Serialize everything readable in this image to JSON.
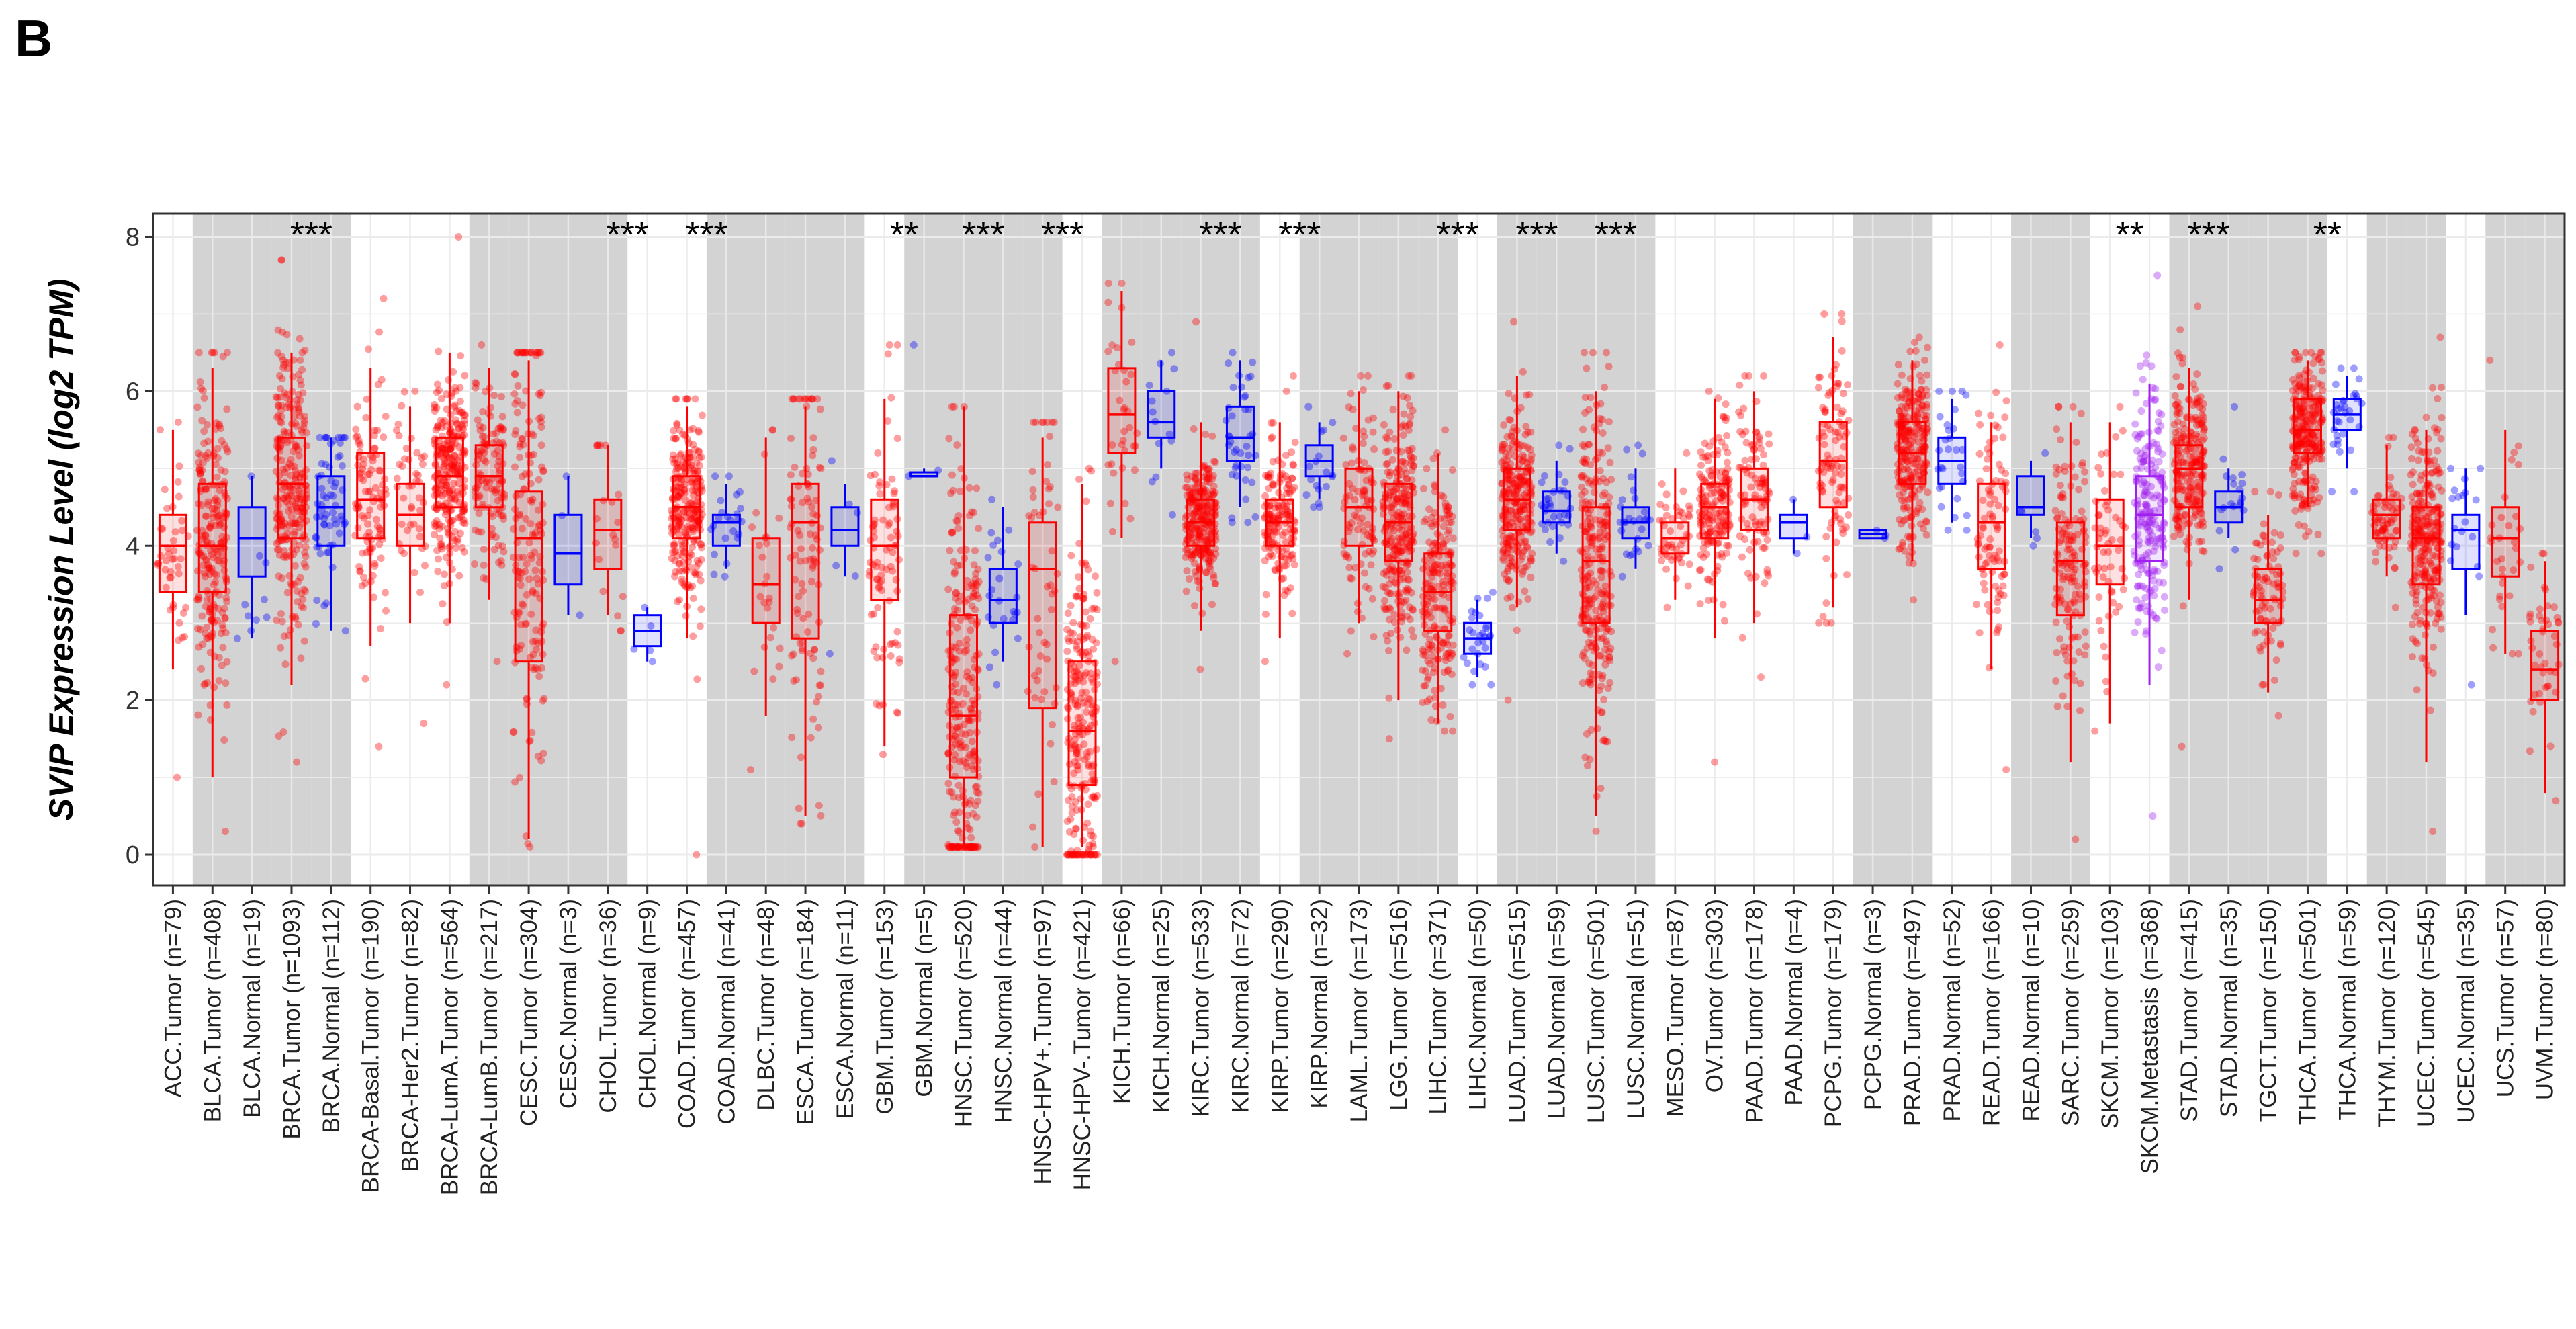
{
  "panel_label": "B",
  "colors": {
    "tumor": "#ff0000",
    "normal": "#0000ff",
    "metastasis": "#a020f0",
    "shade": "#d3d3d3",
    "grid": "#ebebeb"
  },
  "chart_data": {
    "type": "box",
    "title": "",
    "xlabel": "",
    "ylabel": "SVIP Expression Level (log2 TPM)",
    "ylim": [
      -0.4,
      8.3
    ],
    "yticks": [
      0,
      2,
      4,
      6,
      8
    ],
    "shaded_indices": [
      1,
      2,
      3,
      4,
      8,
      9,
      10,
      11,
      14,
      15,
      16,
      17,
      19,
      20,
      21,
      22,
      24,
      25,
      26,
      27,
      29,
      30,
      31,
      32,
      34,
      35,
      36,
      37,
      43,
      44,
      47,
      48,
      51,
      52,
      53,
      54,
      56,
      57,
      59,
      60
    ],
    "categories": [
      {
        "label": "ACC.Tumor (n=79)",
        "group": "tumor",
        "min": 2.4,
        "q1": 3.4,
        "median": 4.0,
        "q3": 4.4,
        "max": 5.5,
        "lo": 1.0,
        "hi": 5.6
      },
      {
        "label": "BLCA.Tumor (n=408)",
        "group": "tumor",
        "min": 1.0,
        "q1": 3.4,
        "median": 4.0,
        "q3": 4.8,
        "max": 6.3,
        "lo": 0.3,
        "hi": 6.5
      },
      {
        "label": "BLCA.Normal (n=19)",
        "group": "normal",
        "min": 2.8,
        "q1": 3.6,
        "median": 4.1,
        "q3": 4.5,
        "max": 4.9,
        "lo": 2.8,
        "hi": 4.9
      },
      {
        "label": "BRCA.Tumor (n=1093)",
        "group": "tumor",
        "min": 2.2,
        "q1": 4.1,
        "median": 4.8,
        "q3": 5.4,
        "max": 6.5,
        "lo": 1.2,
        "hi": 7.7,
        "sig": "***"
      },
      {
        "label": "BRCA.Normal (n=112)",
        "group": "normal",
        "min": 2.9,
        "q1": 4.0,
        "median": 4.5,
        "q3": 4.9,
        "max": 5.4,
        "lo": 2.9,
        "hi": 5.4
      },
      {
        "label": "BRCA-Basal.Tumor (n=190)",
        "group": "tumor",
        "min": 2.7,
        "q1": 4.1,
        "median": 4.6,
        "q3": 5.2,
        "max": 6.3,
        "lo": 1.4,
        "hi": 7.2
      },
      {
        "label": "BRCA-Her2.Tumor (n=82)",
        "group": "tumor",
        "min": 3.0,
        "q1": 4.0,
        "median": 4.4,
        "q3": 4.8,
        "max": 5.8,
        "lo": 1.7,
        "hi": 6.0
      },
      {
        "label": "BRCA-LumA.Tumor (n=564)",
        "group": "tumor",
        "min": 3.0,
        "q1": 4.5,
        "median": 4.9,
        "q3": 5.4,
        "max": 6.5,
        "lo": 2.2,
        "hi": 8.0
      },
      {
        "label": "BRCA-LumB.Tumor (n=217)",
        "group": "tumor",
        "min": 3.3,
        "q1": 4.5,
        "median": 4.9,
        "q3": 5.3,
        "max": 6.3,
        "lo": 2.5,
        "hi": 6.6
      },
      {
        "label": "CESC.Tumor (n=304)",
        "group": "tumor",
        "min": 0.2,
        "q1": 2.5,
        "median": 4.1,
        "q3": 4.7,
        "max": 6.4,
        "lo": 0.1,
        "hi": 6.5
      },
      {
        "label": "CESC.Normal (n=3)",
        "group": "normal",
        "min": 3.1,
        "q1": 3.5,
        "median": 3.9,
        "q3": 4.4,
        "max": 4.9,
        "lo": 3.1,
        "hi": 4.9
      },
      {
        "label": "CHOL.Tumor (n=36)",
        "group": "tumor",
        "min": 3.1,
        "q1": 3.7,
        "median": 4.2,
        "q3": 4.6,
        "max": 5.3,
        "lo": 2.9,
        "hi": 5.3,
        "sig": "***"
      },
      {
        "label": "CHOL.Normal (n=9)",
        "group": "normal",
        "min": 2.5,
        "q1": 2.7,
        "median": 2.9,
        "q3": 3.1,
        "max": 3.2,
        "lo": 2.5,
        "hi": 3.2
      },
      {
        "label": "COAD.Tumor (n=457)",
        "group": "tumor",
        "min": 2.8,
        "q1": 4.1,
        "median": 4.5,
        "q3": 4.9,
        "max": 5.8,
        "lo": 0.0,
        "hi": 5.9,
        "sig": "***"
      },
      {
        "label": "COAD.Normal (n=41)",
        "group": "normal",
        "min": 3.7,
        "q1": 4.0,
        "median": 4.3,
        "q3": 4.4,
        "max": 4.8,
        "lo": 3.6,
        "hi": 4.9
      },
      {
        "label": "DLBC.Tumor (n=48)",
        "group": "tumor",
        "min": 1.8,
        "q1": 3.0,
        "median": 3.5,
        "q3": 4.1,
        "max": 5.4,
        "lo": 1.1,
        "hi": 5.5
      },
      {
        "label": "ESCA.Tumor (n=184)",
        "group": "tumor",
        "min": 0.5,
        "q1": 2.8,
        "median": 4.3,
        "q3": 4.8,
        "max": 5.8,
        "lo": 0.4,
        "hi": 5.9
      },
      {
        "label": "ESCA.Normal (n=11)",
        "group": "normal",
        "min": 3.6,
        "q1": 4.0,
        "median": 4.2,
        "q3": 4.5,
        "max": 4.8,
        "lo": 2.6,
        "hi": 5.1
      },
      {
        "label": "GBM.Tumor (n=153)",
        "group": "tumor",
        "min": 1.4,
        "q1": 3.3,
        "median": 4.0,
        "q3": 4.6,
        "max": 5.9,
        "lo": 1.3,
        "hi": 6.6,
        "sig": "**"
      },
      {
        "label": "GBM.Normal (n=5)",
        "group": "normal",
        "min": 4.9,
        "q1": 4.9,
        "median": 4.9,
        "q3": 4.95,
        "max": 5.0,
        "lo": 4.9,
        "hi": 6.6
      },
      {
        "label": "HNSC.Tumor (n=520)",
        "group": "tumor",
        "min": 0.1,
        "q1": 1.0,
        "median": 1.8,
        "q3": 3.1,
        "max": 5.8,
        "lo": 0.1,
        "hi": 5.8,
        "sig": "***"
      },
      {
        "label": "HNSC.Normal (n=44)",
        "group": "normal",
        "min": 2.5,
        "q1": 3.0,
        "median": 3.3,
        "q3": 3.7,
        "max": 4.5,
        "lo": 2.2,
        "hi": 4.6
      },
      {
        "label": "HNSC-HPV+.Tumor (n=97)",
        "group": "tumor",
        "min": 0.1,
        "q1": 1.9,
        "median": 3.7,
        "q3": 4.3,
        "max": 5.4,
        "lo": 0.1,
        "hi": 5.6,
        "sig": "***"
      },
      {
        "label": "HNSC-HPV-.Tumor (n=421)",
        "group": "tumor",
        "min": 0.1,
        "q1": 0.9,
        "median": 1.6,
        "q3": 2.5,
        "max": 4.8,
        "lo": 0.0,
        "hi": 5.0
      },
      {
        "label": "KICH.Tumor (n=66)",
        "group": "tumor",
        "min": 4.1,
        "q1": 5.2,
        "median": 5.7,
        "q3": 6.3,
        "max": 7.3,
        "lo": 2.5,
        "hi": 7.4
      },
      {
        "label": "KICH.Normal (n=25)",
        "group": "normal",
        "min": 5.0,
        "q1": 5.4,
        "median": 5.6,
        "q3": 6.0,
        "max": 6.4,
        "lo": 4.4,
        "hi": 6.5
      },
      {
        "label": "KIRC.Tumor (n=533)",
        "group": "tumor",
        "min": 2.9,
        "q1": 4.0,
        "median": 4.3,
        "q3": 4.6,
        "max": 5.6,
        "lo": 2.4,
        "hi": 6.9,
        "sig": "***"
      },
      {
        "label": "KIRC.Normal (n=72)",
        "group": "normal",
        "min": 4.5,
        "q1": 5.1,
        "median": 5.4,
        "q3": 5.8,
        "max": 6.4,
        "lo": 4.3,
        "hi": 6.5
      },
      {
        "label": "KIRP.Tumor (n=290)",
        "group": "tumor",
        "min": 2.8,
        "q1": 4.0,
        "median": 4.3,
        "q3": 4.6,
        "max": 5.6,
        "lo": 2.5,
        "hi": 6.2,
        "sig": "***"
      },
      {
        "label": "KIRP.Normal (n=32)",
        "group": "normal",
        "min": 4.6,
        "q1": 4.9,
        "median": 5.1,
        "q3": 5.3,
        "max": 5.6,
        "lo": 4.5,
        "hi": 5.8
      },
      {
        "label": "LAML.Tumor (n=173)",
        "group": "tumor",
        "min": 3.0,
        "q1": 4.0,
        "median": 4.5,
        "q3": 5.0,
        "max": 6.0,
        "lo": 2.6,
        "hi": 6.2
      },
      {
        "label": "LGG.Tumor (n=516)",
        "group": "tumor",
        "min": 2.0,
        "q1": 3.8,
        "median": 4.3,
        "q3": 4.8,
        "max": 6.0,
        "lo": 1.5,
        "hi": 6.2
      },
      {
        "label": "LIHC.Tumor (n=371)",
        "group": "tumor",
        "min": 1.7,
        "q1": 2.9,
        "median": 3.4,
        "q3": 3.9,
        "max": 5.2,
        "lo": 1.6,
        "hi": 5.5,
        "sig": "***"
      },
      {
        "label": "LIHC.Normal (n=50)",
        "group": "normal",
        "min": 2.3,
        "q1": 2.6,
        "median": 2.8,
        "q3": 3.0,
        "max": 3.3,
        "lo": 2.2,
        "hi": 3.4
      },
      {
        "label": "LUAD.Tumor (n=515)",
        "group": "tumor",
        "min": 3.2,
        "q1": 4.2,
        "median": 4.6,
        "q3": 5.0,
        "max": 6.2,
        "lo": 2.0,
        "hi": 6.9,
        "sig": "***"
      },
      {
        "label": "LUAD.Normal (n=59)",
        "group": "normal",
        "min": 3.9,
        "q1": 4.3,
        "median": 4.45,
        "q3": 4.7,
        "max": 5.1,
        "lo": 3.8,
        "hi": 5.3
      },
      {
        "label": "LUSC.Tumor (n=501)",
        "group": "tumor",
        "min": 0.5,
        "q1": 3.0,
        "median": 3.8,
        "q3": 4.5,
        "max": 6.0,
        "lo": 0.3,
        "hi": 6.5,
        "sig": "***"
      },
      {
        "label": "LUSC.Normal (n=51)",
        "group": "normal",
        "min": 3.7,
        "q1": 4.1,
        "median": 4.3,
        "q3": 4.5,
        "max": 5.0,
        "lo": 3.6,
        "hi": 5.3
      },
      {
        "label": "MESO.Tumor (n=87)",
        "group": "tumor",
        "min": 3.3,
        "q1": 3.9,
        "median": 4.1,
        "q3": 4.3,
        "max": 5.0,
        "lo": 3.2,
        "hi": 5.2
      },
      {
        "label": "OV.Tumor (n=303)",
        "group": "tumor",
        "min": 2.8,
        "q1": 4.1,
        "median": 4.5,
        "q3": 4.8,
        "max": 5.9,
        "lo": 1.2,
        "hi": 6.0
      },
      {
        "label": "PAAD.Tumor (n=178)",
        "group": "tumor",
        "min": 3.0,
        "q1": 4.2,
        "median": 4.6,
        "q3": 5.0,
        "max": 6.0,
        "lo": 2.3,
        "hi": 6.2
      },
      {
        "label": "PAAD.Normal (n=4)",
        "group": "normal",
        "min": 3.9,
        "q1": 4.1,
        "median": 4.3,
        "q3": 4.4,
        "max": 4.6,
        "lo": 3.9,
        "hi": 4.6
      },
      {
        "label": "PCPG.Tumor (n=179)",
        "group": "tumor",
        "min": 3.2,
        "q1": 4.5,
        "median": 5.1,
        "q3": 5.6,
        "max": 6.7,
        "lo": 3.0,
        "hi": 7.0
      },
      {
        "label": "PCPG.Normal (n=3)",
        "group": "normal",
        "min": 4.1,
        "q1": 4.1,
        "median": 4.15,
        "q3": 4.2,
        "max": 4.2,
        "lo": 4.1,
        "hi": 4.2
      },
      {
        "label": "PRAD.Tumor (n=497)",
        "group": "tumor",
        "min": 3.8,
        "q1": 4.8,
        "median": 5.2,
        "q3": 5.6,
        "max": 6.4,
        "lo": 3.3,
        "hi": 6.7
      },
      {
        "label": "PRAD.Normal (n=52)",
        "group": "normal",
        "min": 4.3,
        "q1": 4.8,
        "median": 5.1,
        "q3": 5.4,
        "max": 5.9,
        "lo": 4.2,
        "hi": 6.0
      },
      {
        "label": "READ.Tumor (n=166)",
        "group": "tumor",
        "min": 2.4,
        "q1": 3.7,
        "median": 4.3,
        "q3": 4.8,
        "max": 5.6,
        "lo": 1.1,
        "hi": 6.6
      },
      {
        "label": "READ.Normal (n=10)",
        "group": "normal",
        "min": 4.1,
        "q1": 4.4,
        "median": 4.5,
        "q3": 4.9,
        "max": 5.1,
        "lo": 4.0,
        "hi": 5.2
      },
      {
        "label": "SARC.Tumor (n=259)",
        "group": "tumor",
        "min": 1.2,
        "q1": 3.1,
        "median": 3.8,
        "q3": 4.3,
        "max": 5.6,
        "lo": 0.2,
        "hi": 5.8
      },
      {
        "label": "SKCM.Tumor (n=103)",
        "group": "tumor",
        "min": 1.7,
        "q1": 3.5,
        "median": 4.0,
        "q3": 4.6,
        "max": 5.6,
        "lo": 1.6,
        "hi": 5.8,
        "sig": "**"
      },
      {
        "label": "SKCM.Metastasis (n=368)",
        "group": "metastasis",
        "min": 2.2,
        "q1": 3.8,
        "median": 4.4,
        "q3": 4.9,
        "max": 6.1,
        "lo": 0.5,
        "hi": 7.5
      },
      {
        "label": "STAD.Tumor (n=415)",
        "group": "tumor",
        "min": 3.3,
        "q1": 4.5,
        "median": 5.0,
        "q3": 5.3,
        "max": 6.3,
        "lo": 1.4,
        "hi": 7.1,
        "sig": "***"
      },
      {
        "label": "STAD.Normal (n=35)",
        "group": "normal",
        "min": 4.1,
        "q1": 4.3,
        "median": 4.5,
        "q3": 4.7,
        "max": 5.0,
        "lo": 3.7,
        "hi": 5.8
      },
      {
        "label": "TGCT.Tumor (n=150)",
        "group": "tumor",
        "min": 2.1,
        "q1": 3.0,
        "median": 3.3,
        "q3": 3.7,
        "max": 4.4,
        "lo": 1.8,
        "hi": 4.7
      },
      {
        "label": "THCA.Tumor (n=501)",
        "group": "tumor",
        "min": 4.5,
        "q1": 5.2,
        "median": 5.5,
        "q3": 5.9,
        "max": 6.4,
        "lo": 3.9,
        "hi": 6.5,
        "sig": "**"
      },
      {
        "label": "THCA.Normal (n=59)",
        "group": "normal",
        "min": 5.0,
        "q1": 5.5,
        "median": 5.7,
        "q3": 5.9,
        "max": 6.2,
        "lo": 4.7,
        "hi": 6.3
      },
      {
        "label": "THYM.Tumor (n=120)",
        "group": "tumor",
        "min": 3.6,
        "q1": 4.1,
        "median": 4.4,
        "q3": 4.6,
        "max": 5.3,
        "lo": 3.2,
        "hi": 5.4
      },
      {
        "label": "UCEC.Tumor (n=545)",
        "group": "tumor",
        "min": 1.2,
        "q1": 3.5,
        "median": 4.1,
        "q3": 4.5,
        "max": 5.5,
        "lo": 0.3,
        "hi": 6.7
      },
      {
        "label": "UCEC.Normal (n=35)",
        "group": "normal",
        "min": 3.1,
        "q1": 3.7,
        "median": 4.2,
        "q3": 4.4,
        "max": 5.0,
        "lo": 2.2,
        "hi": 5.0
      },
      {
        "label": "UCS.Tumor (n=57)",
        "group": "tumor",
        "min": 2.6,
        "q1": 3.6,
        "median": 4.1,
        "q3": 4.5,
        "max": 5.5,
        "lo": 2.6,
        "hi": 6.4
      },
      {
        "label": "UVM.Tumor (n=80)",
        "group": "tumor",
        "min": 0.8,
        "q1": 2.0,
        "median": 2.4,
        "q3": 2.9,
        "max": 3.8,
        "lo": 0.7,
        "hi": 3.9
      }
    ]
  }
}
